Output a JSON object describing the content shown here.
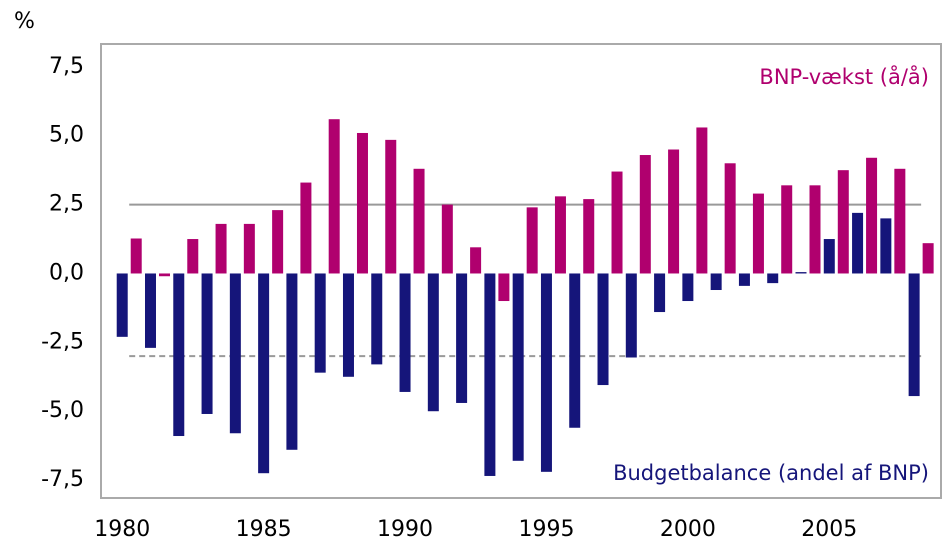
{
  "chart_data": {
    "type": "bar",
    "y_unit_label": "%",
    "x": [
      1980,
      1981,
      1982,
      1983,
      1984,
      1985,
      1986,
      1987,
      1988,
      1989,
      1990,
      1991,
      1992,
      1993,
      1994,
      1995,
      1996,
      1997,
      1998,
      1999,
      2000,
      2001,
      2002,
      2003,
      2004,
      2005,
      2006,
      2007,
      2008
    ],
    "series": [
      {
        "name": "Budgetbalance (andel af BNP)",
        "color": "#15157a",
        "values": [
          -2.3,
          -2.7,
          -5.9,
          -5.1,
          -5.8,
          -7.25,
          -6.4,
          -3.6,
          -3.75,
          -3.3,
          -4.3,
          -5.0,
          -4.7,
          -7.35,
          -6.8,
          -7.2,
          -5.6,
          -4.05,
          -3.05,
          -1.4,
          -1.0,
          -0.6,
          -0.45,
          -0.35,
          0.05,
          1.25,
          2.2,
          2.0,
          -4.45
        ]
      },
      {
        "name": "BNP-vækst (å/å)",
        "color": "#b0006e",
        "values": [
          1.27,
          -0.1,
          1.25,
          1.8,
          1.8,
          2.3,
          3.3,
          5.6,
          5.1,
          4.85,
          3.8,
          2.5,
          0.95,
          -1.0,
          2.4,
          2.8,
          2.7,
          3.7,
          4.3,
          4.5,
          5.3,
          4.0,
          2.9,
          3.2,
          3.2,
          3.75,
          4.2,
          3.8,
          1.1
        ]
      }
    ],
    "reference_lines": [
      {
        "value": 2.5,
        "color": "#999999",
        "style": "solid"
      },
      {
        "value": -3.0,
        "color": "#999999",
        "style": "dashed"
      }
    ],
    "xlim": [
      1979.25,
      2008.95
    ],
    "xticks": [
      1980,
      1985,
      1990,
      1995,
      2000,
      2005
    ],
    "ylim": [
      -8.15,
      8.33
    ],
    "yticks": [
      {
        "value": 7.5,
        "label": "7,5"
      },
      {
        "value": 5.0,
        "label": "5,0"
      },
      {
        "value": 2.5,
        "label": "2,5"
      },
      {
        "value": 0.0,
        "label": "0,0"
      },
      {
        "value": -2.5,
        "label": "-2,5"
      },
      {
        "value": -5.0,
        "label": "-5,0"
      },
      {
        "value": -7.5,
        "label": "-7,5"
      }
    ]
  }
}
